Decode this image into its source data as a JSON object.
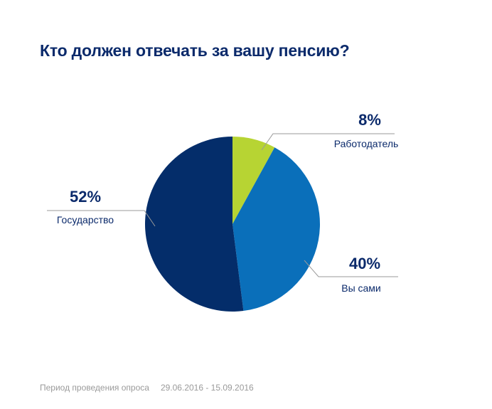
{
  "chart_data": {
    "type": "pie",
    "title": "Кто должен отвечать за вашу пенсию?",
    "slices": [
      {
        "label": "Работодатель",
        "value": 8,
        "value_label": "8%",
        "color": "#b7d433"
      },
      {
        "label": "Вы сами",
        "value": 40,
        "value_label": "40%",
        "color": "#0a6fba"
      },
      {
        "label": "Государство",
        "value": 52,
        "value_label": "52%",
        "color": "#042d6a"
      }
    ]
  },
  "footer": {
    "period_label": "Период проведения опроса",
    "period_dates": "29.06.2016 - 15.09.2016"
  }
}
